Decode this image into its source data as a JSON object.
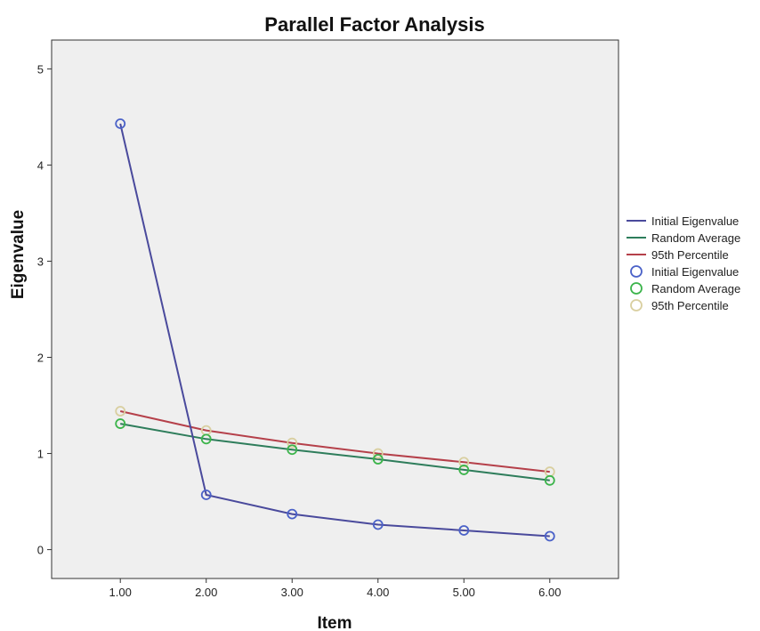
{
  "chart_data": {
    "type": "line",
    "title": "Parallel Factor Analysis",
    "xlabel": "Item",
    "ylabel": "Eigenvalue",
    "x": [
      1,
      2,
      3,
      4,
      5,
      6
    ],
    "x_tick_labels": [
      "1.00",
      "2.00",
      "3.00",
      "4.00",
      "5.00",
      "6.00"
    ],
    "xlim": [
      0.2,
      6.8
    ],
    "ylim": [
      -0.3,
      5.3
    ],
    "y_ticks": [
      0,
      1,
      2,
      3,
      4,
      5
    ],
    "y_tick_labels": [
      "0",
      "1",
      "2",
      "3",
      "4",
      "5"
    ],
    "grid": false,
    "legend_position": "right",
    "plot_background": "#efefef",
    "series": [
      {
        "name": "Initial Eigenvalue",
        "color": "#4a4a9c",
        "marker_color": "#4b62c8",
        "values": [
          4.43,
          0.57,
          0.37,
          0.26,
          0.2,
          0.14
        ]
      },
      {
        "name": "Random Average",
        "color": "#2e7d5b",
        "marker_color": "#3cb44b",
        "values": [
          1.31,
          1.15,
          1.04,
          0.94,
          0.83,
          0.72
        ]
      },
      {
        "name": "95th Percentile",
        "color": "#b5404a",
        "marker_color": "#d9cfa0",
        "values": [
          1.44,
          1.24,
          1.11,
          1.0,
          0.91,
          0.81
        ]
      }
    ],
    "legend": {
      "lines": [
        "Initial Eigenvalue",
        "Random Average",
        "95th Percentile"
      ],
      "markers": [
        "Initial Eigenvalue",
        "Random Average",
        "95th Percentile"
      ]
    }
  }
}
